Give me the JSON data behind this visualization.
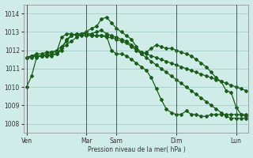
{
  "background_color": "#d0ece8",
  "grid_color": "#a0c8c0",
  "line_color": "#1a5c1a",
  "ylabel": "Pression niveau de la mer( hPa )",
  "ylim": [
    1007.5,
    1014.5
  ],
  "yticks": [
    1008,
    1009,
    1010,
    1011,
    1012,
    1013,
    1014
  ],
  "day_labels": [
    "Ven",
    "Mar",
    "Sam",
    "Dim",
    "Lun"
  ],
  "day_positions": [
    0,
    12,
    18,
    30,
    42
  ],
  "series": [
    [
      1010.0,
      1010.6,
      1011.6,
      1011.7,
      1011.8,
      1011.9,
      1011.9,
      1012.7,
      1012.9,
      1012.9,
      1012.8,
      1012.8,
      1012.8,
      1012.8,
      1012.8,
      1012.8,
      1012.8,
      1012.0,
      1011.8,
      1011.8,
      1011.7,
      1011.5,
      1011.3,
      1011.1,
      1010.9,
      1010.5,
      1009.9,
      1009.3,
      1008.8,
      1008.6,
      1008.5,
      1008.5,
      1008.7,
      1008.5,
      1008.5,
      1008.4,
      1008.4,
      1008.5,
      1008.5,
      1008.5,
      1008.5,
      1008.5,
      1008.5,
      1008.5,
      1008.5
    ],
    [
      1011.6,
      1011.7,
      1011.7,
      1011.7,
      1011.7,
      1011.7,
      1011.8,
      1012.0,
      1012.6,
      1012.8,
      1012.9,
      1012.9,
      1012.9,
      1012.9,
      1013.0,
      1013.1,
      1012.9,
      1012.8,
      1012.7,
      1012.6,
      1012.5,
      1012.3,
      1012.1,
      1011.9,
      1011.8,
      1011.7,
      1011.6,
      1011.5,
      1011.4,
      1011.3,
      1011.2,
      1011.1,
      1011.0,
      1010.9,
      1010.8,
      1010.7,
      1010.6,
      1010.5,
      1010.4,
      1010.3,
      1010.2,
      1010.1,
      1010.0,
      1009.9,
      1009.8
    ],
    [
      1011.6,
      1011.6,
      1011.7,
      1011.7,
      1011.7,
      1011.8,
      1011.8,
      1012.1,
      1012.3,
      1012.5,
      1012.7,
      1012.9,
      1012.9,
      1012.8,
      1012.8,
      1012.8,
      1012.7,
      1012.7,
      1012.6,
      1012.5,
      1012.4,
      1012.2,
      1012.0,
      1011.8,
      1011.6,
      1011.4,
      1011.2,
      1011.0,
      1010.8,
      1010.6,
      1010.4,
      1010.2,
      1010.0,
      1009.8,
      1009.6,
      1009.4,
      1009.2,
      1009.0,
      1008.8,
      1008.6,
      1008.4,
      1008.3,
      1008.3,
      1008.3,
      1008.3
    ],
    [
      1011.6,
      1011.7,
      1011.8,
      1011.8,
      1011.9,
      1011.9,
      1012.0,
      1012.2,
      1012.5,
      1012.8,
      1012.9,
      1012.9,
      1013.0,
      1013.2,
      1013.3,
      1013.7,
      1013.8,
      1013.5,
      1013.2,
      1013.0,
      1012.8,
      1012.6,
      1012.2,
      1011.8,
      1011.9,
      1012.1,
      1012.3,
      1012.2,
      1012.1,
      1012.1,
      1012.0,
      1011.9,
      1011.8,
      1011.7,
      1011.5,
      1011.3,
      1011.1,
      1010.8,
      1010.5,
      1010.3,
      1009.8,
      1009.7,
      1008.9,
      1008.5,
      1008.4
    ]
  ]
}
